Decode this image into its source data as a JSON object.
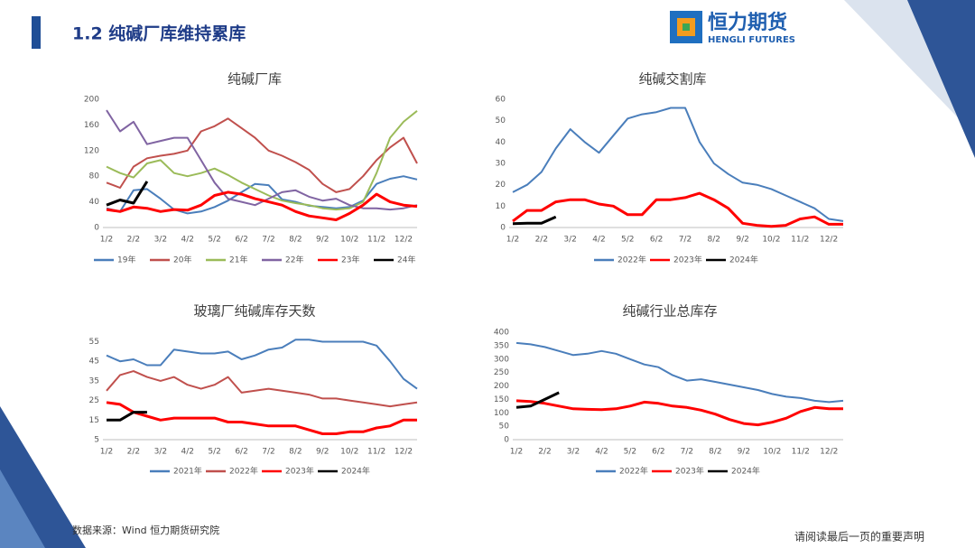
{
  "header": {
    "title": "1.2 纯碱厂库维持累库",
    "logo_cn": "恒力期货",
    "logo_en": "HENGLI FUTURES"
  },
  "footer": {
    "source": "数据来源：Wind 恒力期货研究院",
    "disclaimer": "请阅读最后一页的重要声明"
  },
  "chart_data": [
    {
      "type": "line",
      "title": "纯碱厂库",
      "categories": [
        "1/2",
        null,
        "2/2",
        null,
        "3/2",
        null,
        "4/2",
        null,
        "5/2",
        null,
        "6/2",
        null,
        "7/2",
        null,
        "8/2",
        null,
        "9/2",
        null,
        "10/2",
        null,
        "11/2",
        null,
        "12/2",
        null
      ],
      "ylim": [
        0,
        200
      ],
      "yticks": [
        0,
        40,
        80,
        120,
        160,
        200
      ],
      "grid": false,
      "series": [
        {
          "name": "19年",
          "color": "#4a7ebb",
          "values": [
            30,
            25,
            58,
            60,
            45,
            28,
            22,
            25,
            32,
            42,
            55,
            68,
            66,
            44,
            40,
            34,
            32,
            30,
            32,
            42,
            68,
            76,
            80,
            75
          ]
        },
        {
          "name": "20年",
          "color": "#c0504d",
          "values": [
            70,
            62,
            95,
            108,
            112,
            115,
            120,
            150,
            158,
            170,
            155,
            140,
            120,
            112,
            102,
            90,
            68,
            55,
            60,
            80,
            105,
            125,
            140,
            100
          ]
        },
        {
          "name": "21年",
          "color": "#9bbb59",
          "values": [
            95,
            85,
            78,
            100,
            105,
            85,
            80,
            85,
            92,
            82,
            70,
            60,
            50,
            42,
            38,
            35,
            30,
            28,
            30,
            40,
            85,
            140,
            165,
            182
          ]
        },
        {
          "name": "22年",
          "color": "#8064a2",
          "values": [
            183,
            150,
            165,
            130,
            135,
            140,
            140,
            105,
            70,
            45,
            40,
            35,
            45,
            55,
            58,
            48,
            42,
            45,
            35,
            30,
            30,
            28,
            30,
            35
          ]
        },
        {
          "name": "23年",
          "color": "#ff0000",
          "values": [
            28,
            25,
            32,
            30,
            25,
            28,
            27,
            35,
            50,
            55,
            52,
            45,
            40,
            35,
            25,
            18,
            15,
            12,
            22,
            35,
            52,
            40,
            35,
            33
          ]
        },
        {
          "name": "24年",
          "color": "#000000",
          "values": [
            35,
            43,
            38,
            72,
            null,
            null,
            null,
            null,
            null,
            null,
            null,
            null,
            null,
            null,
            null,
            null,
            null,
            null,
            null,
            null,
            null,
            null,
            null,
            null
          ]
        }
      ]
    },
    {
      "type": "line",
      "title": "纯碱交割库",
      "categories": [
        "1/2",
        null,
        "2/2",
        null,
        "3/2",
        null,
        "4/2",
        null,
        "5/2",
        null,
        "6/2",
        null,
        "7/2",
        null,
        "8/2",
        null,
        "9/2",
        null,
        "10/2",
        null,
        "11/2",
        null,
        "12/2",
        null
      ],
      "ylim": [
        0,
        60
      ],
      "yticks": [
        0,
        10,
        20,
        30,
        40,
        50,
        60
      ],
      "grid": false,
      "series": [
        {
          "name": "2022年",
          "color": "#4a7ebb",
          "values": [
            16.5,
            20,
            26,
            37,
            46,
            40,
            35,
            43,
            51,
            53,
            54,
            56,
            56,
            40,
            30,
            25,
            21,
            20,
            18,
            15,
            12,
            9,
            4,
            3
          ]
        },
        {
          "name": "2023年",
          "color": "#ff0000",
          "values": [
            3,
            8,
            8,
            12,
            13,
            13,
            11,
            10,
            6,
            6,
            13,
            13,
            14,
            16,
            13,
            9,
            2,
            1,
            0.5,
            1,
            4,
            5,
            1.5,
            1.5
          ]
        },
        {
          "name": "2024年",
          "color": "#000000",
          "values": [
            1.8,
            2,
            2,
            5,
            null,
            null,
            null,
            null,
            null,
            null,
            null,
            null,
            null,
            null,
            null,
            null,
            null,
            null,
            null,
            null,
            null,
            null,
            null,
            null
          ]
        }
      ]
    },
    {
      "type": "line",
      "title": "玻璃厂纯碱库存天数",
      "categories": [
        "1/2",
        null,
        "2/2",
        null,
        "3/2",
        null,
        "4/2",
        null,
        "5/2",
        null,
        "6/2",
        null,
        "7/2",
        null,
        "8/2",
        null,
        "9/2",
        null,
        "10/2",
        null,
        "11/2",
        null,
        "12/2",
        null
      ],
      "ylim": [
        5,
        58
      ],
      "yticks": [
        5,
        15,
        25,
        35,
        45,
        55
      ],
      "grid": false,
      "series": [
        {
          "name": "2021年",
          "color": "#4a7ebb",
          "values": [
            48,
            45,
            46,
            43,
            43,
            51,
            50,
            49,
            49,
            50,
            46,
            48,
            51,
            52,
            56,
            56,
            55,
            55,
            55,
            55,
            53,
            45,
            36,
            31
          ]
        },
        {
          "name": "2022年",
          "color": "#c0504d",
          "values": [
            30,
            38,
            40,
            37,
            35,
            37,
            33,
            31,
            33,
            37,
            29,
            30,
            31,
            30,
            29,
            28,
            26,
            26,
            25,
            24,
            23,
            22,
            23,
            24
          ]
        },
        {
          "name": "2023年",
          "color": "#ff0000",
          "values": [
            24,
            23,
            19,
            17,
            15,
            16,
            16,
            16,
            16,
            14,
            14,
            13,
            12,
            12,
            12,
            10,
            8,
            8,
            9,
            9,
            11,
            12,
            15,
            15
          ]
        },
        {
          "name": "2024年",
          "color": "#000000",
          "values": [
            15,
            15,
            19,
            19,
            null,
            null,
            null,
            null,
            null,
            null,
            null,
            null,
            null,
            null,
            null,
            null,
            null,
            null,
            null,
            null,
            null,
            null,
            null,
            null
          ]
        }
      ]
    },
    {
      "type": "line",
      "title": "纯碱行业总库存",
      "categories": [
        "1/2",
        null,
        "2/2",
        null,
        "3/2",
        null,
        "4/2",
        null,
        "5/2",
        null,
        "6/2",
        null,
        "7/2",
        null,
        "8/2",
        null,
        "9/2",
        null,
        "10/2",
        null,
        "11/2",
        null,
        "12/2",
        null
      ],
      "ylim": [
        0,
        400
      ],
      "yticks": [
        0,
        50,
        100,
        150,
        200,
        250,
        300,
        350,
        400
      ],
      "grid": false,
      "series": [
        {
          "name": "2022年",
          "color": "#4a7ebb",
          "values": [
            360,
            355,
            345,
            330,
            315,
            320,
            330,
            320,
            300,
            280,
            270,
            240,
            220,
            225,
            215,
            205,
            195,
            185,
            170,
            160,
            155,
            145,
            140,
            145
          ]
        },
        {
          "name": "2023年",
          "color": "#ff0000",
          "values": [
            145,
            142,
            135,
            125,
            115,
            113,
            112,
            115,
            125,
            140,
            135,
            125,
            120,
            110,
            95,
            75,
            60,
            55,
            65,
            80,
            105,
            120,
            115,
            115
          ]
        },
        {
          "name": "2024年",
          "color": "#000000",
          "values": [
            120,
            125,
            150,
            175,
            null,
            null,
            null,
            null,
            null,
            null,
            null,
            null,
            null,
            null,
            null,
            null,
            null,
            null,
            null,
            null,
            null,
            null,
            null,
            null
          ]
        }
      ]
    }
  ]
}
